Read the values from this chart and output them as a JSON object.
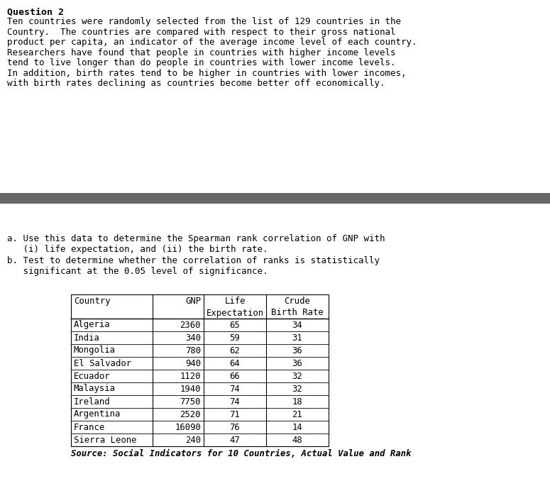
{
  "title": "Question 2",
  "paragraph": "Ten countries were randomly selected from the list of 129 countries in the\nCountry.  The countries are compared with respect to their gross national\nproduct per capita, an indicator of the average income level of each country.\nResearchers have found that people in countries with higher income levels\ntend to live longer than do people in countries with lower income levels.\nIn addition, birth rates tend to be higher in countries with lower incomes,\nwith birth rates declining as countries become better off economically.",
  "part_a_line1": "a. Use this data to determine the Spearman rank correlation of GNP with",
  "part_a_line2": "   (i) life expectation, and (ii) the birth rate.",
  "part_b_line1": "b. Test to determine whether the correlation of ranks is statistically",
  "part_b_line2": "   significant at the 0.05 level of significance.",
  "table_header_row1": [
    "Country",
    "GNP",
    "Life",
    "Crude"
  ],
  "table_header_row2": [
    "",
    "",
    "Expectation",
    "Birth Rate"
  ],
  "table_data": [
    [
      "Algeria",
      "2360",
      "65",
      "34"
    ],
    [
      "India",
      "340",
      "59",
      "31"
    ],
    [
      "Mongolia",
      "780",
      "62",
      "36"
    ],
    [
      "El Salvador",
      "940",
      "64",
      "36"
    ],
    [
      "Ecuador",
      "1120",
      "66",
      "32"
    ],
    [
      "Malaysia",
      "1940",
      "74",
      "32"
    ],
    [
      "Ireland",
      "7750",
      "74",
      "18"
    ],
    [
      "Argentina",
      "2520",
      "71",
      "21"
    ],
    [
      "France",
      "16090",
      "76",
      "14"
    ],
    [
      "Sierra Leone",
      "240",
      "47",
      "48"
    ]
  ],
  "source_text": "Source: Social Indicators for 10 Countries, Actual Value and Rank",
  "divider_color": "#686868",
  "bg_color": "#ffffff",
  "text_color": "#000000",
  "font_family": "monospace",
  "title_fontsize": 9.5,
  "body_fontsize": 9.0,
  "table_fontsize": 8.8
}
